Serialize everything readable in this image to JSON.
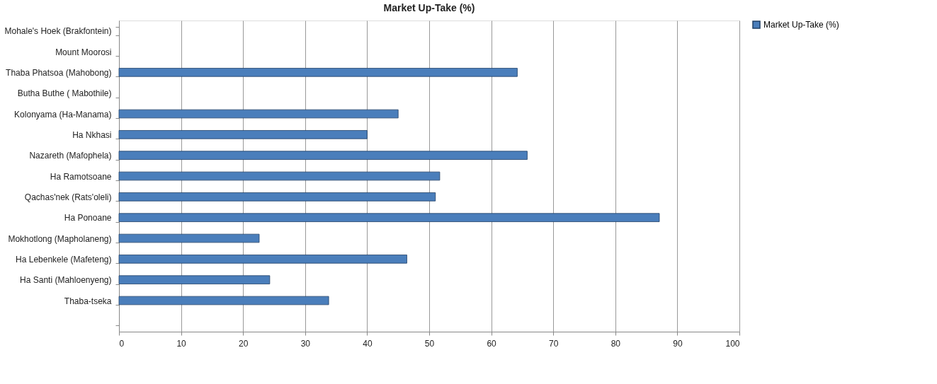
{
  "chart_data": {
    "type": "bar",
    "orientation": "horizontal",
    "title": "Market Up-Take (%)",
    "categories": [
      "Mohale's Hoek (Brakfontein)",
      "Mount Moorosi",
      "Thaba Phatsoa (Mahobong)",
      "Butha  Buthe ( Mabothile)",
      "Kolonyama (Ha-Manama)",
      "Ha Nkhasi",
      "Nazareth (Mafophela)",
      "Ha Ramotsoane",
      "Qachas'nek (Rats'oleli)",
      "Ha Ponoane",
      "Mokhotlong (Mapholaneng)",
      "Ha Lebenkele (Mafeteng)",
      "Ha Santi (Mahloenyeng)",
      "Thaba-tseka",
      null
    ],
    "series": [
      {
        "name": "Market Up-Take (%)",
        "color": "#4a7ebb",
        "values": [
          null,
          null,
          64.2,
          null,
          45.0,
          40.0,
          65.8,
          51.7,
          51.0,
          87.1,
          22.6,
          46.4,
          24.3,
          33.8,
          null
        ]
      }
    ],
    "xlim": [
      0,
      100
    ],
    "xticks": [
      0,
      10,
      20,
      30,
      40,
      50,
      60,
      70,
      80,
      90,
      100
    ],
    "grid": "x",
    "legend": "right"
  }
}
